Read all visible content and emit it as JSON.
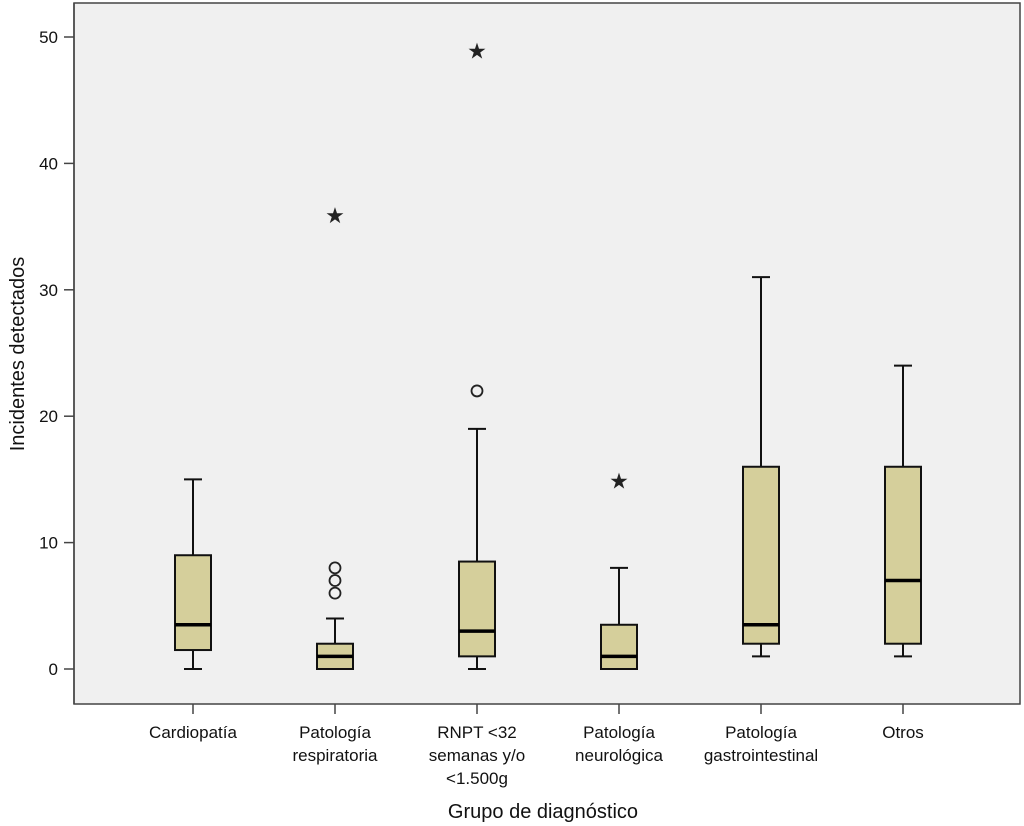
{
  "chart_data": {
    "type": "boxplot",
    "xlabel": "Grupo de diagnóstico",
    "ylabel": "Incidentes detectados",
    "ylim": [
      -2.8,
      52.6
    ],
    "yticks": [
      0,
      10,
      20,
      30,
      40,
      50
    ],
    "grid": false,
    "colors": {
      "box_fill": "#d5cf9b",
      "plot_bg": "#f0f0f0",
      "stroke": "#111111"
    },
    "categories": [
      {
        "label_lines": [
          "Cardiopatía"
        ],
        "min": 0,
        "q1": 1.5,
        "median": 3.5,
        "q3": 9,
        "max": 15,
        "outliers": [],
        "extremes": []
      },
      {
        "label_lines": [
          "Patología",
          "respiratoria"
        ],
        "min": 0,
        "q1": 0,
        "median": 1,
        "q3": 2,
        "max": 4,
        "outliers": [
          6,
          7,
          8
        ],
        "extremes": [
          36
        ]
      },
      {
        "label_lines": [
          "RNPT <32",
          "semanas y/o",
          "<1.500g"
        ],
        "min": 0,
        "q1": 1,
        "median": 3,
        "q3": 8.5,
        "max": 19,
        "outliers": [
          22
        ],
        "extremes": [
          49
        ]
      },
      {
        "label_lines": [
          "Patología",
          "neurológica"
        ],
        "min": 0,
        "q1": 0,
        "median": 1,
        "q3": 3.5,
        "max": 8,
        "outliers": [],
        "extremes": [
          15
        ]
      },
      {
        "label_lines": [
          "Patología",
          "gastrointestinal"
        ],
        "min": 1,
        "q1": 2,
        "median": 3.5,
        "q3": 16,
        "max": 31,
        "outliers": [],
        "extremes": []
      },
      {
        "label_lines": [
          "Otros"
        ],
        "min": 1,
        "q1": 2,
        "median": 7,
        "q3": 16,
        "max": 24,
        "outliers": [],
        "extremes": []
      }
    ]
  }
}
